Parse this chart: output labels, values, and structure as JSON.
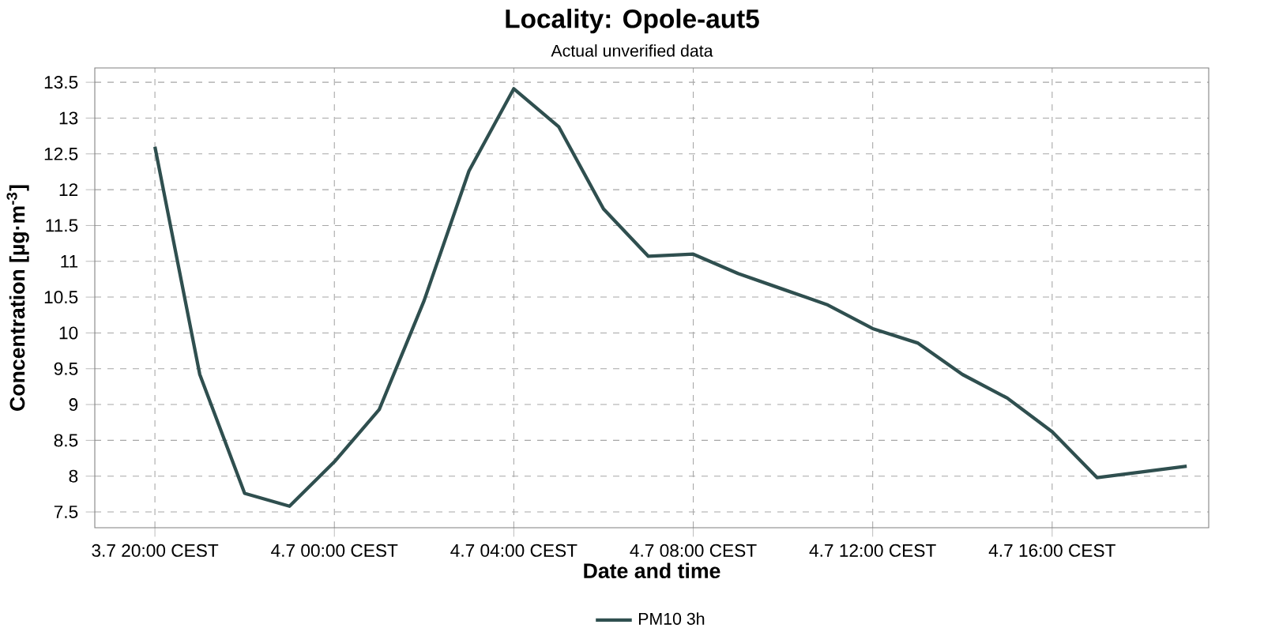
{
  "chart_data": {
    "type": "line",
    "title": "Locality: Opole-aut5",
    "subtitle": "Actual unverified data",
    "xlabel": "Date and time",
    "ylabel": "Concentration [µg·m$^{-3}$]",
    "categories": [
      "3.7 20:00 CEST",
      null,
      null,
      null,
      "4.7 00:00 CEST",
      null,
      null,
      null,
      "4.7 04:00 CEST",
      null,
      null,
      null,
      "4.7 08:00 CEST",
      null,
      null,
      null,
      "4.7 12:00 CEST",
      null,
      null,
      null,
      "4.7 16:00 CEST",
      null,
      null,
      null
    ],
    "series": [
      {
        "name": "PM10 3h",
        "color": "#2f4f4f",
        "values": [
          12.6,
          9.42,
          7.76,
          7.58,
          8.2,
          8.93,
          10.45,
          12.26,
          13.41,
          12.88,
          11.73,
          11.07,
          11.1,
          10.83,
          10.61,
          10.39,
          10.06,
          9.86,
          9.42,
          9.09,
          8.62,
          7.98,
          8.06,
          8.14
        ]
      }
    ],
    "ylim": [
      7.28,
      13.7
    ],
    "yticks": [
      7.5,
      8,
      8.5,
      9,
      9.5,
      10,
      10.5,
      11,
      11.5,
      12,
      12.5,
      13,
      13.5
    ],
    "grid": true,
    "legend": "bottom",
    "marker": "none",
    "line_style": "solid"
  }
}
